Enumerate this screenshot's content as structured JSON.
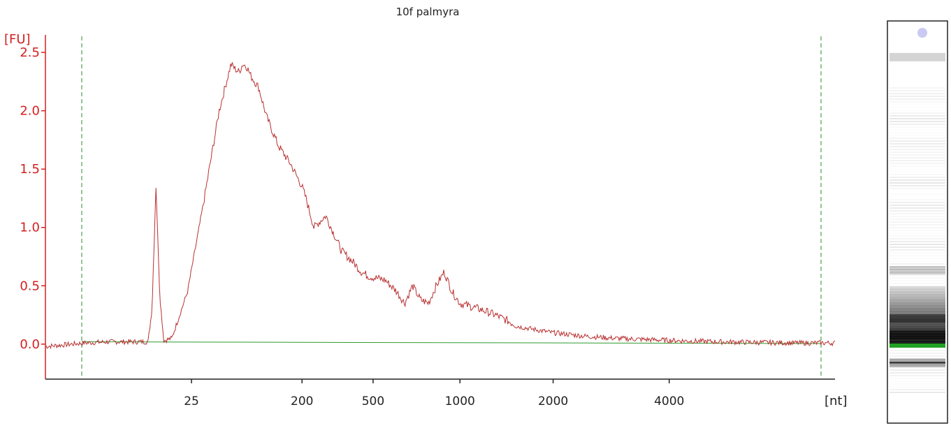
{
  "chart_data": {
    "type": "line",
    "title": "10f palmyra",
    "ylabel": "[FU]",
    "xlabel": "[nt]",
    "ylim": [
      -0.3,
      2.65
    ],
    "y_ticks": [
      "0.0",
      "0.5",
      "1.0",
      "1.5",
      "2.0",
      "2.5"
    ],
    "x_ticks": [
      "25",
      "200",
      "500",
      "1000",
      "2000",
      "4000"
    ],
    "grid": false,
    "colors": {
      "axis_y": "#d42020",
      "axis_x": "#222222",
      "trace": "#b83030",
      "baseline": "#2e9a2e",
      "markers": "#2e8a2e",
      "band_lower_marker": "#22a022"
    },
    "series": [
      {
        "type": "trace",
        "points": [
          [
            0.0,
            -0.02
          ],
          [
            0.05,
            0.01
          ],
          [
            0.08,
            0.02
          ],
          [
            0.1,
            0.02
          ],
          [
            0.13,
            0.02
          ],
          [
            0.135,
            0.3
          ],
          [
            0.14,
            1.35
          ],
          [
            0.145,
            0.4
          ],
          [
            0.15,
            0.03
          ],
          [
            0.16,
            0.05
          ],
          [
            0.18,
            0.45
          ],
          [
            0.2,
            1.2
          ],
          [
            0.22,
            2.0
          ],
          [
            0.235,
            2.4
          ],
          [
            0.24,
            2.36
          ],
          [
            0.245,
            2.33
          ],
          [
            0.25,
            2.4
          ],
          [
            0.255,
            2.38
          ],
          [
            0.26,
            2.3
          ],
          [
            0.27,
            2.2
          ],
          [
            0.28,
            1.95
          ],
          [
            0.295,
            1.7
          ],
          [
            0.31,
            1.55
          ],
          [
            0.325,
            1.35
          ],
          [
            0.33,
            1.25
          ],
          [
            0.34,
            1.0
          ],
          [
            0.355,
            1.1
          ],
          [
            0.365,
            0.95
          ],
          [
            0.375,
            0.8
          ],
          [
            0.39,
            0.7
          ],
          [
            0.4,
            0.62
          ],
          [
            0.41,
            0.58
          ],
          [
            0.43,
            0.55
          ],
          [
            0.445,
            0.45
          ],
          [
            0.455,
            0.35
          ],
          [
            0.465,
            0.5
          ],
          [
            0.475,
            0.38
          ],
          [
            0.485,
            0.35
          ],
          [
            0.495,
            0.5
          ],
          [
            0.505,
            0.62
          ],
          [
            0.515,
            0.45
          ],
          [
            0.525,
            0.35
          ],
          [
            0.55,
            0.3
          ],
          [
            0.57,
            0.25
          ],
          [
            0.6,
            0.15
          ],
          [
            0.64,
            0.1
          ],
          [
            0.68,
            0.07
          ],
          [
            0.72,
            0.05
          ],
          [
            0.76,
            0.04
          ],
          [
            0.8,
            0.03
          ],
          [
            0.85,
            0.02
          ],
          [
            0.9,
            0.015
          ],
          [
            0.95,
            0.01
          ],
          [
            1.0,
            0.01
          ]
        ],
        "x_range": [
          0,
          1
        ]
      }
    ],
    "gel_lane": {
      "bands": [
        {
          "position": 0.09,
          "intensity": 0.3
        },
        {
          "position": 0.62,
          "intensity": 0.35
        },
        {
          "position": 0.74,
          "intensity": 0.85
        },
        {
          "position": 0.78,
          "intensity": 1.0
        },
        {
          "position": 0.85,
          "intensity": 0.6
        }
      ]
    }
  }
}
